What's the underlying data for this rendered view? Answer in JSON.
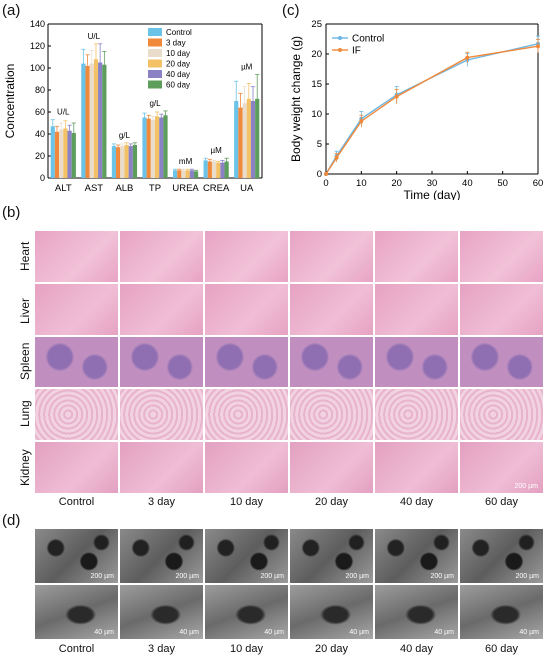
{
  "panels": {
    "a": "(a)",
    "b": "(b)",
    "c": "(c)",
    "d": "(d)"
  },
  "colors": {
    "control": "#6cc3e8",
    "day3": "#f0893b",
    "day10": "#eadccb",
    "day20": "#f3c266",
    "day40": "#8a82c4",
    "day60": "#5e9e5c",
    "if_line": "#f0893b",
    "control_line": "#6cb6e2"
  },
  "chart_data": [
    {
      "type": "bar",
      "ylabel": "Concentration",
      "ylim": [
        0,
        140
      ],
      "yticks": [
        0,
        20,
        40,
        60,
        80,
        100,
        120,
        140
      ],
      "categories": [
        "ALT",
        "AST",
        "ALB",
        "TP",
        "UREA",
        "CREA",
        "UA"
      ],
      "units": [
        "U/L",
        "U/L",
        "g/L",
        "g/L",
        "mM",
        "µM",
        "µM"
      ],
      "series": [
        {
          "name": "Control",
          "values": [
            47,
            104,
            29,
            55,
            7,
            16,
            70
          ]
        },
        {
          "name": "3 day",
          "values": [
            42,
            102,
            28,
            54,
            7,
            15,
            64
          ]
        },
        {
          "name": "10 day",
          "values": [
            44,
            104,
            29,
            53,
            7,
            15,
            68
          ]
        },
        {
          "name": "20 day",
          "values": [
            45,
            108,
            30,
            56,
            7,
            14,
            72
          ]
        },
        {
          "name": "40 day",
          "values": [
            43,
            105,
            29,
            55,
            7,
            14,
            70
          ]
        },
        {
          "name": "60 day",
          "values": [
            41,
            103,
            30,
            57,
            6,
            15,
            72
          ]
        }
      ],
      "errors": [
        [
          6,
          13,
          2,
          4,
          1,
          2,
          18
        ],
        [
          5,
          10,
          2,
          3,
          1,
          2,
          13
        ],
        [
          6,
          12,
          2,
          3,
          1,
          1,
          15
        ],
        [
          7,
          14,
          2,
          4,
          1,
          1,
          14
        ],
        [
          5,
          17,
          2,
          3,
          1,
          2,
          13
        ],
        [
          9,
          12,
          2,
          4,
          1,
          3,
          22
        ]
      ]
    },
    {
      "type": "line",
      "xlabel": "Time (day)",
      "ylabel": "Body weight change (g)",
      "xlim": [
        0,
        60
      ],
      "ylim": [
        0,
        25
      ],
      "xticks": [
        0,
        10,
        20,
        30,
        40,
        50,
        60
      ],
      "yticks": [
        0,
        5,
        10,
        15,
        20,
        25
      ],
      "x": [
        0,
        3,
        10,
        20,
        40,
        60
      ],
      "series": [
        {
          "name": "Control",
          "values": [
            0,
            3.0,
            9.2,
            13.2,
            19.0,
            21.7
          ],
          "errors": [
            0,
            0.8,
            1.2,
            1.4,
            1.1,
            1.3
          ]
        },
        {
          "name": "IF",
          "values": [
            0,
            2.7,
            8.8,
            12.9,
            19.4,
            21.3
          ],
          "errors": [
            0,
            0.7,
            1.0,
            1.2,
            0.9,
            1.1
          ]
        }
      ]
    }
  ],
  "histology": {
    "rows": [
      "Heart",
      "Liver",
      "Spleen",
      "Lung",
      "Kidney"
    ],
    "columns": [
      "Control",
      "3 day",
      "10 day",
      "20 day",
      "40 day",
      "60 day"
    ],
    "scale": "200 µm"
  },
  "sem": {
    "columns": [
      "Control",
      "3 day",
      "10 day",
      "20 day",
      "40 day",
      "60 day"
    ],
    "top_scale": "200 µm",
    "bottom_scale": "40 µm"
  }
}
